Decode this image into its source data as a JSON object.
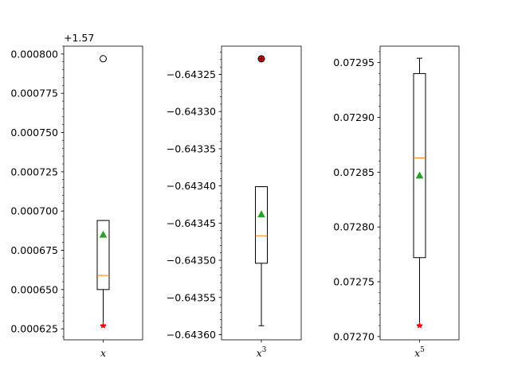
{
  "chart_data": [
    {
      "type": "box",
      "title": "",
      "xlabel_base": "x",
      "xlabel_exp": "",
      "ylabel": "",
      "offset_text": "+1.57",
      "ylim": [
        0.000618,
        0.000805
      ],
      "yticks": [
        0.000625,
        0.00065,
        0.000675,
        0.0007,
        0.000725,
        0.00075,
        0.000775,
        0.0008
      ],
      "ytick_labels": [
        "0.000625",
        "0.000650",
        "0.000675",
        "0.000700",
        "0.000725",
        "0.000750",
        "0.000775",
        "0.000800"
      ],
      "minor_step": 5e-06,
      "box": {
        "whisker_low": 0.000627,
        "q1": 0.00065,
        "median": 0.000659,
        "q3": 0.000694,
        "whisker_high": 0.000694,
        "mean": 0.000685,
        "min_marker": 0.000627,
        "fliers": [
          0.000797
        ],
        "flier_red_fill": false
      }
    },
    {
      "type": "box",
      "title": "",
      "xlabel_base": "x",
      "xlabel_exp": "3",
      "ylabel": "",
      "offset_text": "",
      "ylim": [
        -0.643607,
        -0.643212
      ],
      "yticks": [
        -0.6436,
        -0.64355,
        -0.6435,
        -0.64345,
        -0.6434,
        -0.64335,
        -0.6433,
        -0.64325
      ],
      "ytick_labels": [
        "−0.64360",
        "−0.64355",
        "−0.64350",
        "−0.64345",
        "−0.64340",
        "−0.64335",
        "−0.64330",
        "−0.64325"
      ],
      "minor_step": 1e-05,
      "box": {
        "whisker_low": -0.643588,
        "q1": -0.643504,
        "median": -0.643467,
        "q3": -0.643401,
        "whisker_high": -0.643401,
        "mean": -0.643438,
        "min_marker": null,
        "fliers": [
          -0.643229
        ],
        "flier_red_fill": true
      }
    },
    {
      "type": "box",
      "title": "",
      "xlabel_base": "x",
      "xlabel_exp": "5",
      "ylabel": "",
      "offset_text": "",
      "ylim": [
        0.072697,
        0.072965
      ],
      "yticks": [
        0.0727,
        0.07275,
        0.0728,
        0.07285,
        0.0729,
        0.07295
      ],
      "ytick_labels": [
        "0.07270",
        "0.07275",
        "0.07280",
        "0.07285",
        "0.07290",
        "0.07295"
      ],
      "minor_step": 1e-05,
      "box": {
        "whisker_low": 0.07271,
        "q1": 0.072772,
        "median": 0.072863,
        "q3": 0.07294,
        "whisker_high": 0.072954,
        "mean": 0.072847,
        "min_marker": 0.07271,
        "fliers": [],
        "flier_red_fill": false
      }
    }
  ],
  "colors": {
    "box": "#000000",
    "median": "#ff7f0e",
    "mean": "#2ca02c",
    "min_marker": "#ff0000",
    "flier_red": "#ff0000"
  }
}
